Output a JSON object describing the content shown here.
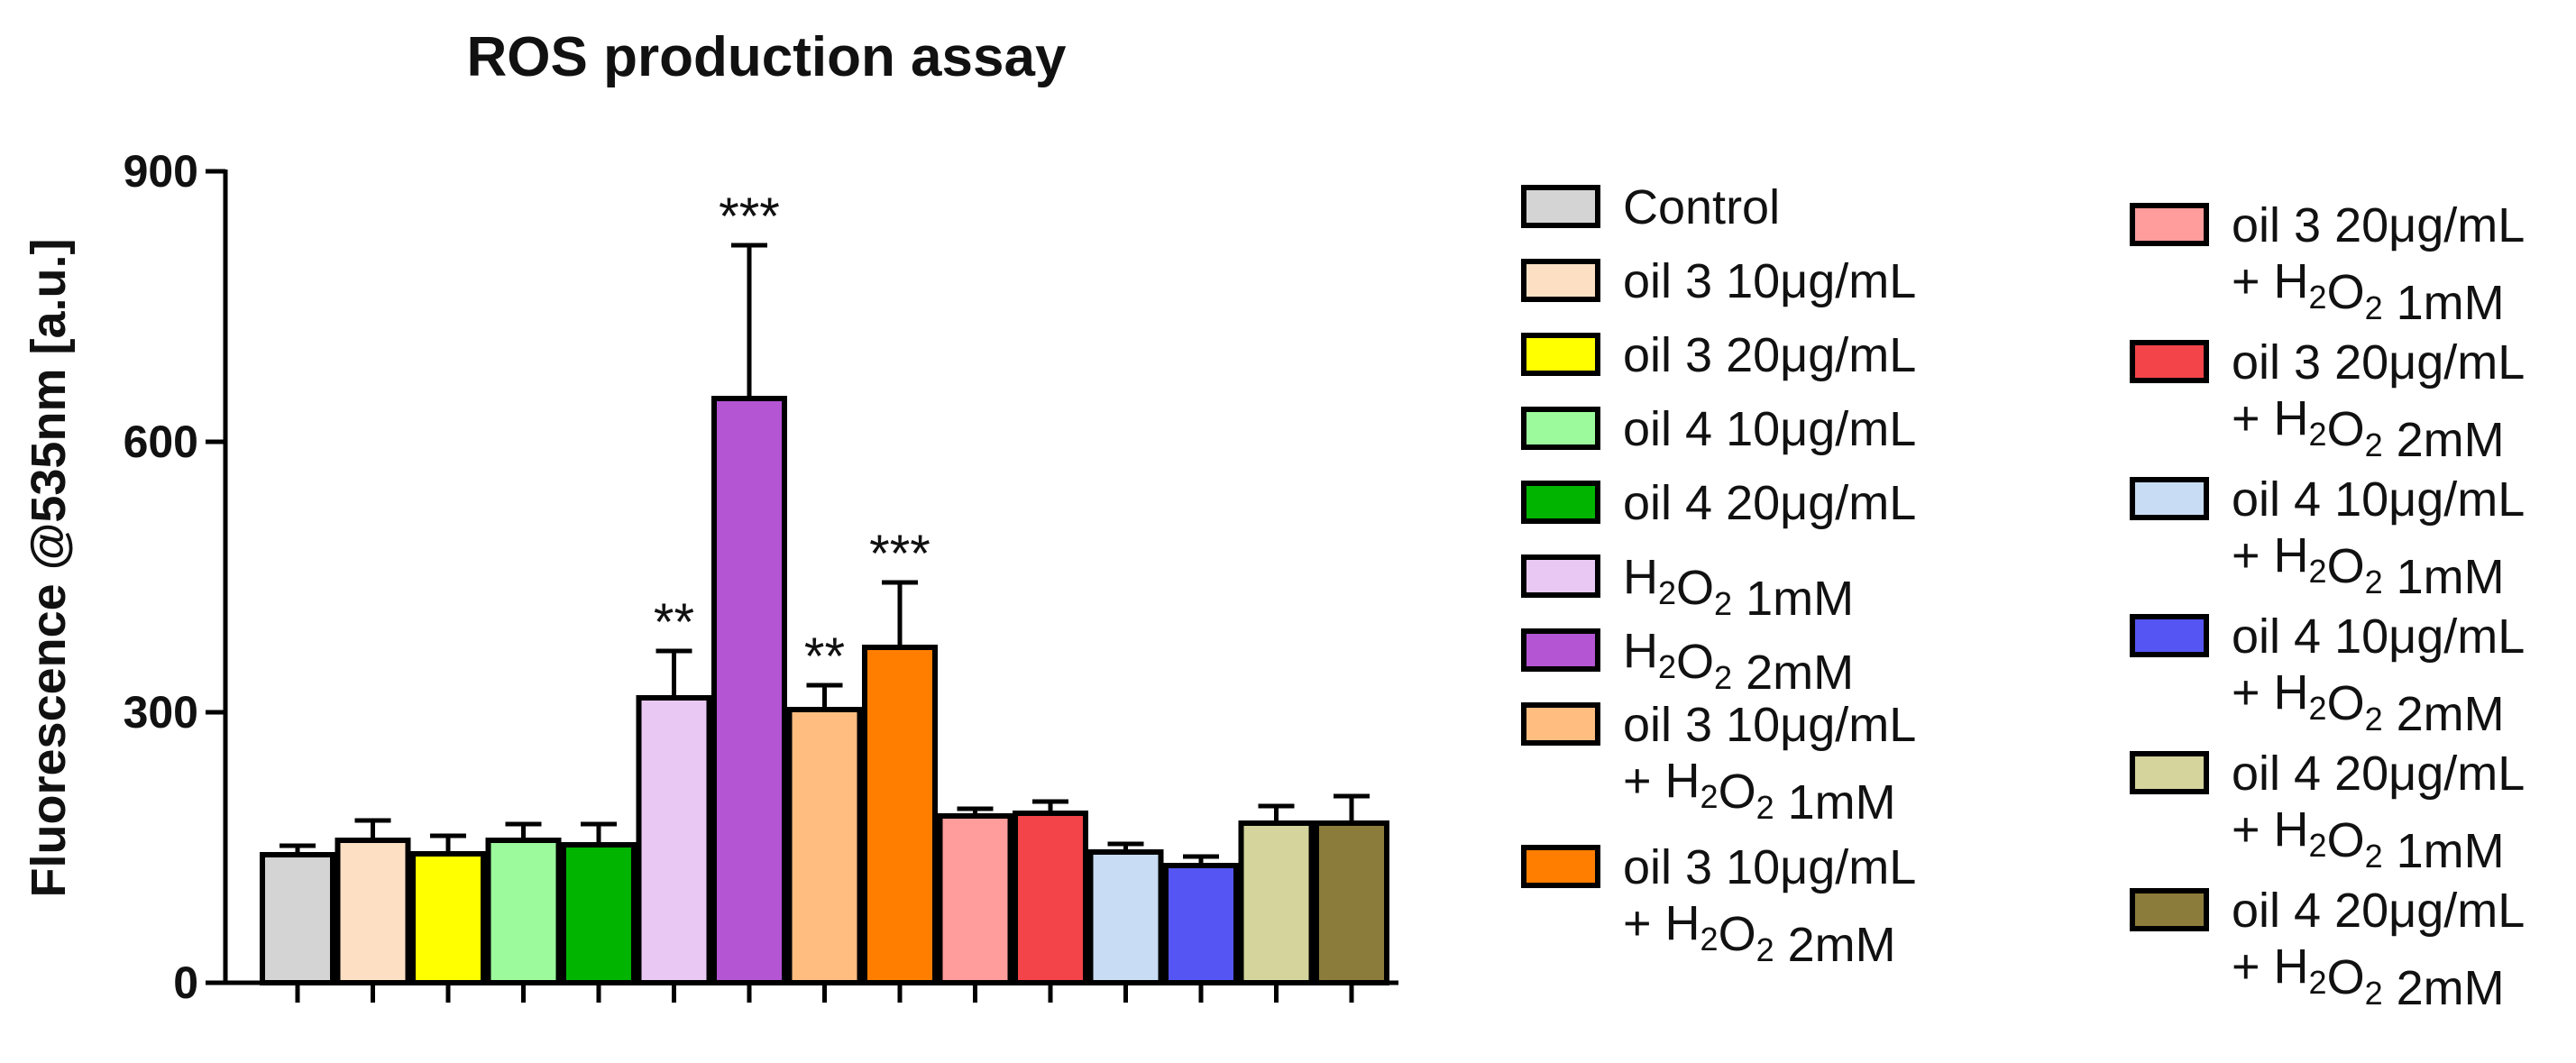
{
  "chart_data": {
    "type": "bar",
    "title": "ROS production assay",
    "xlabel": "",
    "ylabel": "Fluorescence @535nm [a.u.]",
    "ylim": [
      0,
      900
    ],
    "yticks": [
      0,
      300,
      600,
      900
    ],
    "grid": false,
    "legend_position": "right",
    "categories": [
      "Control",
      "oil 3 10μg/mL",
      "oil 3 20μg/mL",
      "oil 4 10μg/mL",
      "oil 4 20μg/mL",
      "H2O2 1mM",
      "H2O2 2mM",
      "oil 3 10μg/mL + H2O2 1mM",
      "oil 3 10μg/mL + H2O2 2mM",
      "oil 3 20μg/mL + H2O2 1mM",
      "oil 3 20μg/mL + H2O2 2mM",
      "oil 4 10μg/mL + H2O2 1mM",
      "oil 4 10μg/mL + H2O2 2mM",
      "oil 4 20μg/mL + H2O2 1mM",
      "oil 4 20μg/mL + H2O2 2mM"
    ],
    "values": [
      142,
      158,
      143,
      158,
      153,
      316,
      648,
      303,
      372,
      185,
      188,
      145,
      130,
      177,
      177
    ],
    "errors": [
      10,
      22,
      20,
      18,
      23,
      52,
      170,
      27,
      72,
      8,
      13,
      9,
      10,
      19,
      30
    ],
    "significance": [
      "",
      "",
      "",
      "",
      "",
      "**",
      "***",
      "**",
      "***",
      "",
      "",
      "",
      "",
      "",
      ""
    ],
    "colors": [
      "#d4d4d4",
      "#fde0c4",
      "#ffff00",
      "#9cfa9c",
      "#00b400",
      "#eac8f4",
      "#b455d4",
      "#ffbd80",
      "#ff7e00",
      "#ff9c9c",
      "#f34449",
      "#c8dcf4",
      "#5555f4",
      "#d4d49c",
      "#8c7c3c"
    ]
  },
  "legend": {
    "col1": [
      {
        "line1": "Control",
        "line2": ""
      },
      {
        "line1": "oil 3 10μg/mL",
        "line2": ""
      },
      {
        "line1": "oil 3 20μg/mL",
        "line2": ""
      },
      {
        "line1": "oil 4 10μg/mL",
        "line2": ""
      },
      {
        "line1": "oil 4 20μg/mL",
        "line2": ""
      },
      {
        "line1": "H₂O₂ 1mM",
        "line2": ""
      },
      {
        "line1": "H₂O₂ 2mM",
        "line2": ""
      },
      {
        "line1": "oil 3 10μg/mL",
        "line2": "+ H₂O₂ 1mM"
      },
      {
        "line1": "oil 3 10μg/mL",
        "line2": "+ H₂O₂ 2mM"
      }
    ],
    "col2": [
      {
        "line1": "oil 3 20μg/mL",
        "line2": "+ H₂O₂ 1mM"
      },
      {
        "line1": "oil 3 20μg/mL",
        "line2": "+ H₂O₂ 2mM"
      },
      {
        "line1": "oil 4 10μg/mL",
        "line2": "+ H₂O₂ 1mM"
      },
      {
        "line1": "oil 4 10μg/mL",
        "line2": "+ H₂O₂ 2mM"
      },
      {
        "line1": "oil 4 20μg/mL",
        "line2": "+ H₂O₂ 1mM"
      },
      {
        "line1": "oil 4 20μg/mL",
        "line2": "+ H₂O₂ 2mM"
      }
    ]
  }
}
